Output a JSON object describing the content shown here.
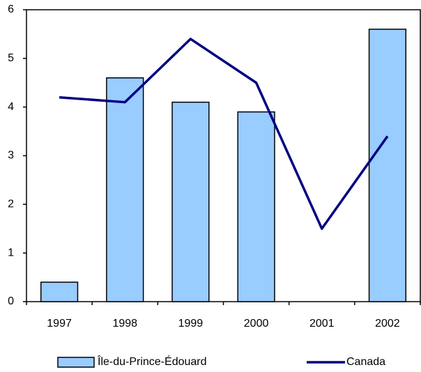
{
  "chart_data": {
    "type": "bar",
    "categories": [
      "1997",
      "1998",
      "1999",
      "2000",
      "2001",
      "2002"
    ],
    "series": [
      {
        "name": "Île-du-Prince-Édouard",
        "type": "bar",
        "color": "#99ccff",
        "values": [
          0.4,
          4.6,
          4.1,
          3.9,
          0,
          5.6
        ]
      },
      {
        "name": "Canada",
        "type": "line",
        "color": "#000080",
        "values": [
          4.2,
          4.1,
          5.4,
          4.5,
          1.5,
          3.4
        ]
      }
    ],
    "ylim": [
      0,
      6
    ],
    "yticks": [
      0,
      1,
      2,
      3,
      4,
      5,
      6
    ],
    "grid": false
  }
}
